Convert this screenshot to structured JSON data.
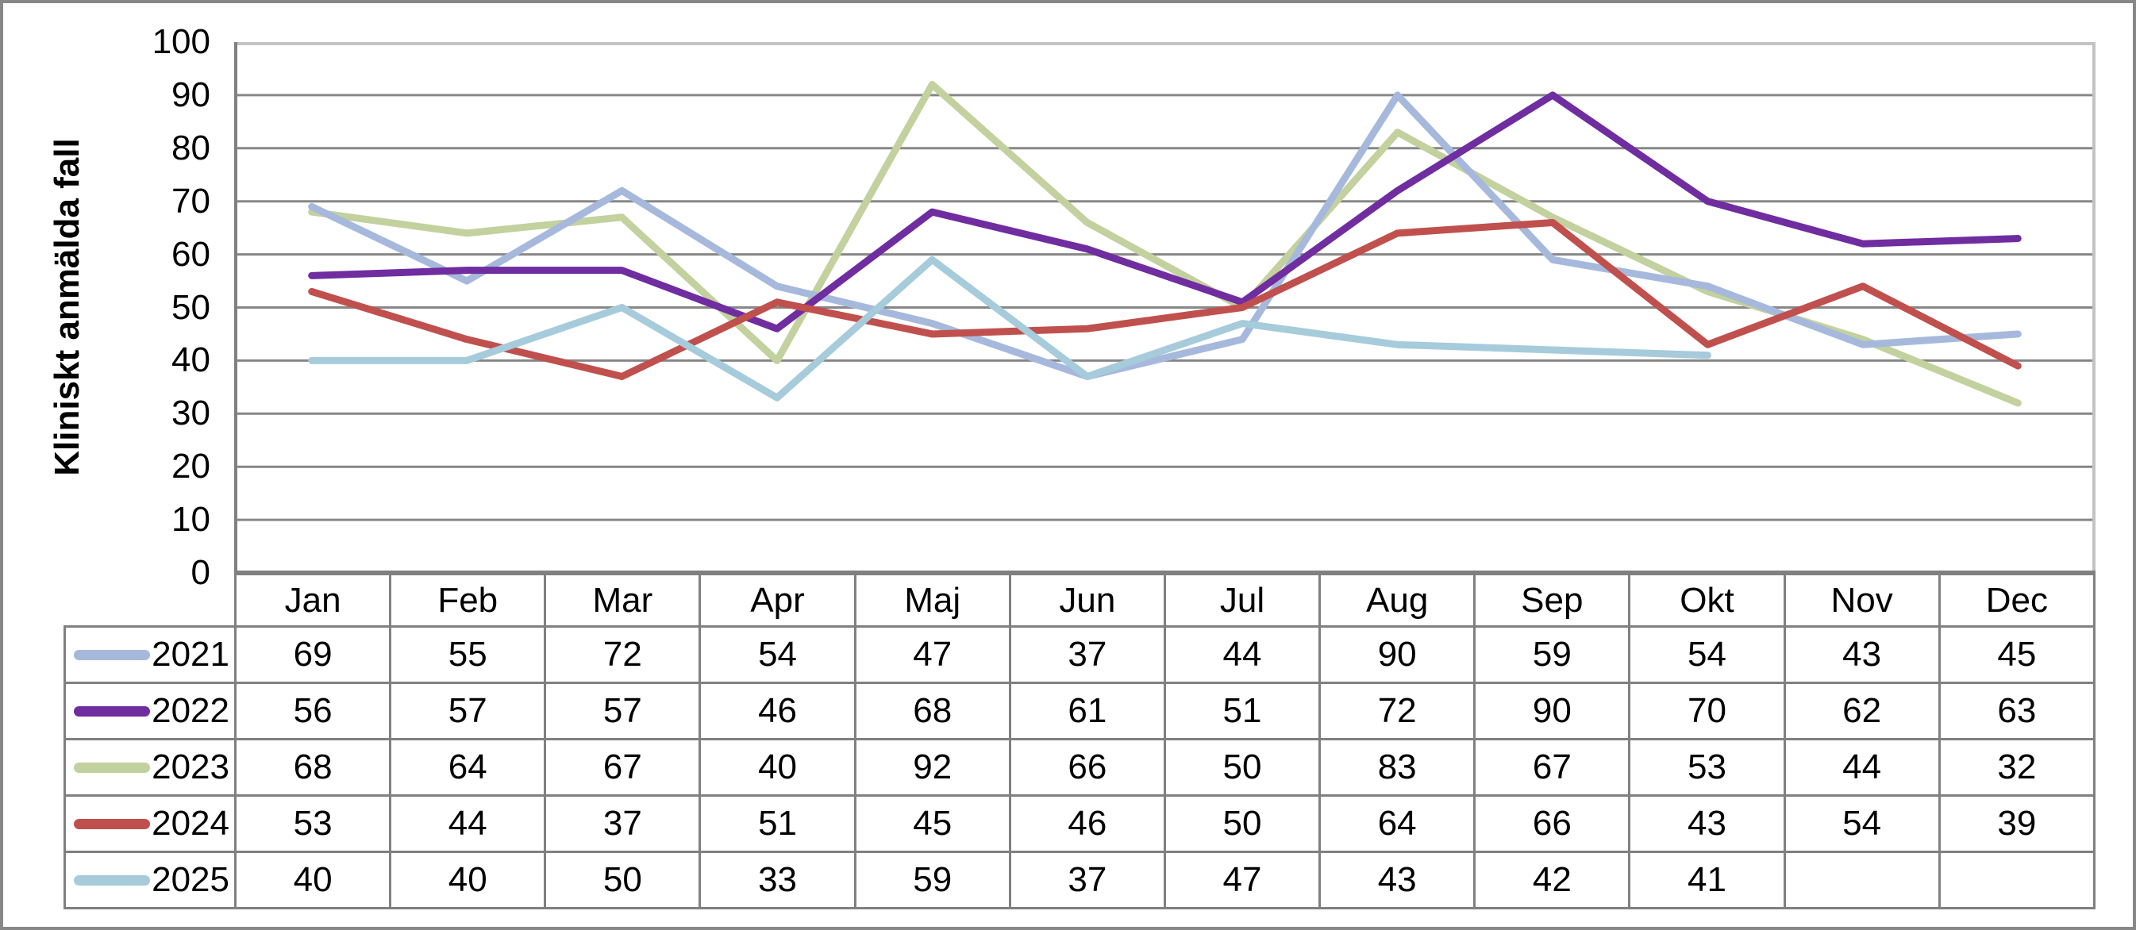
{
  "chart_data": {
    "type": "line",
    "title": "",
    "ylabel": "Kliniskt anmälda fall",
    "xlabel": "",
    "ylim": [
      0,
      100
    ],
    "yticks": [
      0,
      10,
      20,
      30,
      40,
      50,
      60,
      70,
      80,
      90,
      100
    ],
    "grid": "horizontal",
    "legend_position": "data-table-left",
    "categories": [
      "Jan",
      "Feb",
      "Mar",
      "Apr",
      "Maj",
      "Jun",
      "Jul",
      "Aug",
      "Sep",
      "Okt",
      "Nov",
      "Dec"
    ],
    "series": [
      {
        "name": "2021",
        "color": "#A6B9DC",
        "values": [
          69,
          55,
          72,
          54,
          47,
          37,
          44,
          90,
          59,
          54,
          43,
          45
        ]
      },
      {
        "name": "2022",
        "color": "#6F2DA0",
        "values": [
          56,
          57,
          57,
          46,
          68,
          61,
          51,
          72,
          90,
          70,
          62,
          63
        ]
      },
      {
        "name": "2023",
        "color": "#C2D19E",
        "values": [
          68,
          64,
          67,
          40,
          92,
          66,
          50,
          83,
          67,
          53,
          44,
          32
        ]
      },
      {
        "name": "2024",
        "color": "#C0504D",
        "values": [
          53,
          44,
          37,
          51,
          45,
          46,
          50,
          64,
          66,
          43,
          54,
          39
        ]
      },
      {
        "name": "2025",
        "color": "#A6CBDB",
        "values": [
          40,
          40,
          50,
          33,
          59,
          37,
          47,
          43,
          42,
          41,
          null,
          null
        ]
      }
    ],
    "draw_order": [
      "2023",
      "2021",
      "2022",
      "2024",
      "2025"
    ]
  },
  "colors": {
    "gridline": "#878787",
    "plot_frame_light": "#C3C3C3",
    "axis_line": "#808080",
    "table_border": "#808080",
    "outer_border": "#878787",
    "text": "#000000",
    "background": "#FFFFFF"
  }
}
